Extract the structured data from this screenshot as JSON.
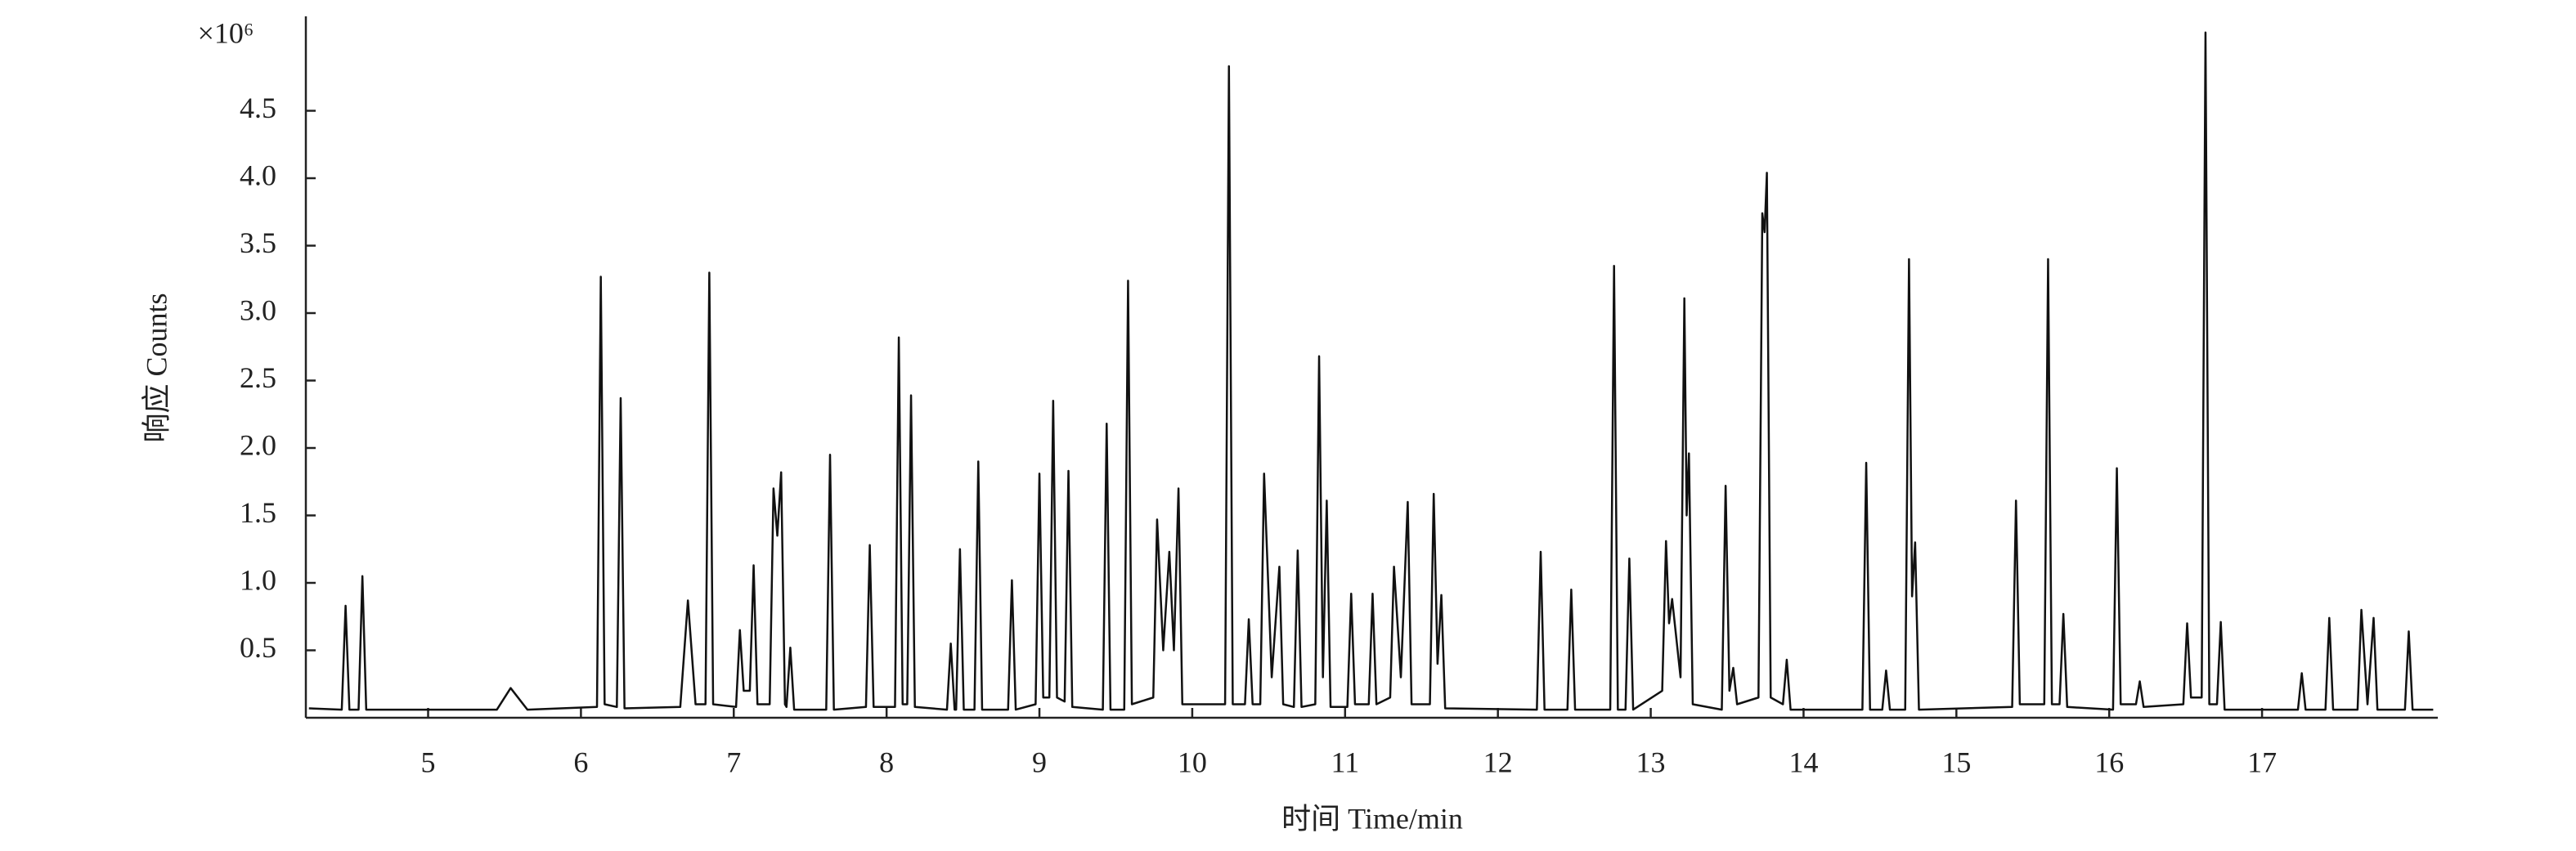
{
  "chart_data": {
    "type": "line",
    "y_unit_label": "×10⁶",
    "ylabel": "响应 Counts",
    "xlabel": "时间 Time/min",
    "xlim": [
      4.2,
      18.15
    ],
    "ylim": [
      0,
      5.2
    ],
    "xticks": [
      5,
      6,
      7,
      8,
      9,
      10,
      11,
      12,
      13,
      14,
      15,
      16,
      17
    ],
    "yticks": [
      0.5,
      {
        "value": 1,
        "label": "1.0"
      },
      1.5,
      {
        "value": 2,
        "label": "2.0"
      },
      2.5,
      {
        "value": 3,
        "label": "3.0"
      },
      3.5,
      {
        "value": 4,
        "label": "4.0"
      },
      4.5
    ],
    "color": "#111111",
    "x": [
      4.22,
      4.435,
      4.46,
      4.485,
      4.545,
      4.57,
      4.595,
      5.45,
      5.54,
      5.65,
      6.105,
      6.13,
      6.155,
      6.235,
      6.26,
      6.285,
      6.65,
      6.7,
      6.75,
      6.815,
      6.84,
      6.865,
      7.015,
      7.04,
      7.065,
      7.105,
      7.13,
      7.155,
      7.235,
      7.26,
      7.285,
      7.31,
      7.335,
      7.345,
      7.37,
      7.395,
      7.605,
      7.63,
      7.655,
      7.865,
      7.89,
      7.915,
      8.055,
      8.08,
      8.105,
      8.135,
      8.16,
      8.185,
      8.395,
      8.42,
      8.445,
      8.455,
      8.48,
      8.505,
      8.575,
      8.6,
      8.625,
      8.795,
      8.82,
      8.845,
      8.975,
      9.0,
      9.025,
      9.065,
      9.09,
      9.115,
      9.165,
      9.19,
      9.215,
      9.415,
      9.44,
      9.465,
      9.555,
      9.58,
      9.605,
      9.745,
      9.77,
      9.81,
      9.85,
      9.88,
      9.91,
      9.935,
      10.215,
      10.24,
      10.265,
      10.345,
      10.37,
      10.395,
      10.445,
      10.47,
      10.52,
      10.57,
      10.595,
      10.665,
      10.69,
      10.715,
      10.805,
      10.83,
      10.855,
      10.88,
      10.905,
      11.015,
      11.04,
      11.065,
      11.155,
      11.18,
      11.205,
      11.295,
      11.32,
      11.365,
      11.41,
      11.435,
      11.555,
      11.58,
      11.605,
      11.63,
      11.655,
      12.255,
      12.28,
      12.305,
      12.455,
      12.48,
      12.505,
      12.735,
      12.76,
      12.785,
      12.835,
      12.86,
      12.885,
      13.075,
      13.1,
      13.12,
      13.14,
      13.195,
      13.22,
      13.235,
      13.25,
      13.275,
      13.465,
      13.49,
      13.515,
      13.54,
      13.565,
      13.705,
      13.73,
      13.745,
      13.76,
      13.785,
      13.865,
      13.89,
      13.915,
      14.385,
      14.41,
      14.435,
      14.515,
      14.54,
      14.565,
      14.665,
      14.69,
      14.71,
      14.73,
      14.755,
      15.365,
      15.39,
      15.415,
      15.575,
      15.6,
      15.625,
      15.675,
      15.7,
      15.725,
      16.025,
      16.05,
      16.075,
      16.175,
      16.2,
      16.225,
      16.485,
      16.51,
      16.535,
      16.605,
      16.63,
      16.655,
      16.705,
      16.73,
      16.755,
      17.235,
      17.26,
      17.285,
      17.415,
      17.44,
      17.465,
      17.625,
      17.65,
      17.69,
      17.73,
      17.755,
      17.935,
      17.96,
      17.985,
      18.12
    ],
    "values": [
      0.07,
      0.06,
      0.83,
      0.06,
      0.06,
      1.05,
      0.06,
      0.06,
      0.22,
      0.06,
      0.08,
      3.27,
      0.1,
      0.08,
      2.37,
      0.07,
      0.08,
      0.87,
      0.1,
      0.1,
      3.3,
      0.1,
      0.08,
      0.65,
      0.2,
      0.2,
      1.13,
      0.1,
      0.1,
      1.7,
      1.35,
      1.82,
      0.1,
      0.08,
      0.52,
      0.06,
      0.06,
      1.95,
      0.06,
      0.08,
      1.28,
      0.08,
      0.08,
      2.82,
      0.1,
      0.1,
      2.39,
      0.08,
      0.06,
      0.55,
      0.06,
      0.06,
      1.25,
      0.06,
      0.06,
      1.9,
      0.06,
      0.06,
      1.02,
      0.06,
      0.1,
      1.81,
      0.15,
      0.15,
      2.35,
      0.15,
      0.12,
      1.83,
      0.08,
      0.06,
      2.18,
      0.06,
      0.06,
      3.24,
      0.1,
      0.15,
      1.47,
      0.5,
      1.23,
      0.5,
      1.7,
      0.1,
      0.1,
      4.83,
      0.1,
      0.1,
      0.73,
      0.1,
      0.1,
      1.81,
      0.3,
      1.12,
      0.1,
      0.08,
      1.24,
      0.08,
      0.1,
      2.68,
      0.3,
      1.61,
      0.08,
      0.08,
      0.92,
      0.1,
      0.1,
      0.92,
      0.1,
      0.15,
      1.12,
      0.3,
      1.6,
      0.1,
      0.1,
      1.66,
      0.4,
      0.91,
      0.07,
      0.06,
      1.23,
      0.06,
      0.06,
      0.95,
      0.06,
      0.06,
      3.35,
      0.06,
      0.06,
      1.18,
      0.06,
      0.2,
      1.31,
      0.7,
      0.88,
      0.3,
      3.11,
      1.5,
      1.96,
      0.1,
      0.06,
      1.72,
      0.2,
      0.37,
      0.1,
      0.15,
      3.74,
      3.6,
      4.04,
      0.15,
      0.1,
      0.43,
      0.06,
      0.06,
      1.89,
      0.06,
      0.06,
      0.35,
      0.06,
      0.06,
      3.4,
      0.9,
      1.3,
      0.06,
      0.08,
      1.61,
      0.1,
      0.1,
      3.4,
      0.1,
      0.1,
      0.77,
      0.08,
      0.06,
      1.85,
      0.1,
      0.1,
      0.27,
      0.08,
      0.1,
      0.7,
      0.15,
      0.15,
      5.08,
      0.1,
      0.1,
      0.71,
      0.06,
      0.06,
      0.33,
      0.06,
      0.06,
      0.74,
      0.06,
      0.06,
      0.8,
      0.1,
      0.74,
      0.06,
      0.06,
      0.64,
      0.06,
      0.06
    ]
  }
}
